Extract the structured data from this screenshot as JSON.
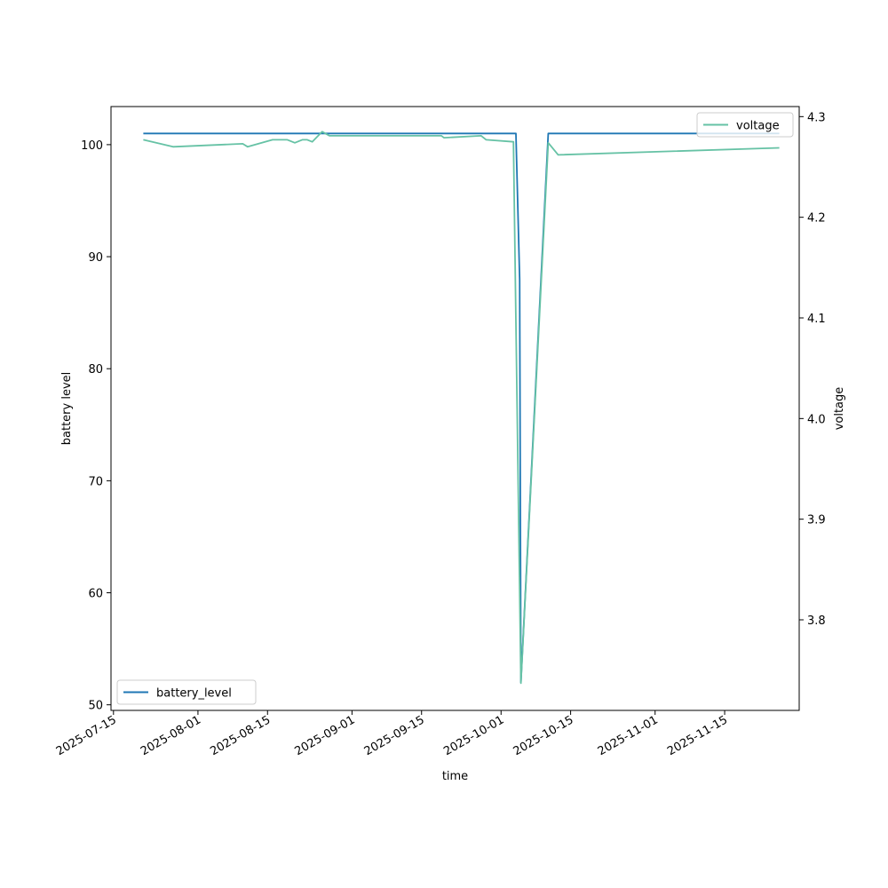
{
  "chart_data": {
    "type": "line",
    "xlabel": "time",
    "ylabel": "battery level",
    "ylabel_right": "voltage",
    "x_type": "date",
    "xlim": [
      "2025-07-14T12:00",
      "2025-11-30T00:00"
    ],
    "ylim": [
      49.5,
      103.4
    ],
    "ylim_right": [
      3.71,
      4.31
    ],
    "x_ticks": [
      "2025-07-15",
      "2025-08-01",
      "2025-08-15",
      "2025-09-01",
      "2025-09-15",
      "2025-10-01",
      "2025-10-15",
      "2025-11-01",
      "2025-11-15"
    ],
    "y_ticks": [
      50,
      60,
      70,
      80,
      90,
      100
    ],
    "y_ticks_right": [
      3.8,
      3.9,
      4.0,
      4.1,
      4.2,
      4.3
    ],
    "grid": false,
    "series": [
      {
        "name": "battery_level",
        "axis": "left",
        "color": "#1f77b4",
        "legend_position": "lower-left",
        "points": [
          [
            "2025-07-21T00:00",
            101
          ],
          [
            "2025-10-04T00:00",
            101
          ],
          [
            "2025-10-04T18:00",
            88
          ],
          [
            "2025-10-05T00:00",
            52
          ],
          [
            "2025-10-10T12:00",
            101
          ],
          [
            "2025-11-26T00:00",
            101
          ]
        ]
      },
      {
        "name": "voltage",
        "axis": "right",
        "color": "#66c2a5",
        "legend_position": "upper-right",
        "points": [
          [
            "2025-07-21T00:00",
            4.277
          ],
          [
            "2025-07-27T00:00",
            4.27
          ],
          [
            "2025-08-10T00:00",
            4.273
          ],
          [
            "2025-08-11T00:00",
            4.27
          ],
          [
            "2025-08-16T00:00",
            4.277
          ],
          [
            "2025-08-19T00:00",
            4.277
          ],
          [
            "2025-08-20T12:00",
            4.274
          ],
          [
            "2025-08-22T00:00",
            4.277
          ],
          [
            "2025-08-23T00:00",
            4.277
          ],
          [
            "2025-08-24T00:00",
            4.275
          ],
          [
            "2025-08-26T00:00",
            4.285
          ],
          [
            "2025-08-27T12:00",
            4.281
          ],
          [
            "2025-09-19T00:00",
            4.281
          ],
          [
            "2025-09-19T12:00",
            4.279
          ],
          [
            "2025-09-27T00:00",
            4.281
          ],
          [
            "2025-09-28T00:00",
            4.277
          ],
          [
            "2025-10-03T12:00",
            4.275
          ],
          [
            "2025-10-05T00:00",
            3.737
          ],
          [
            "2025-10-10T12:00",
            4.274
          ],
          [
            "2025-10-12T12:00",
            4.262
          ],
          [
            "2025-11-26T00:00",
            4.269
          ]
        ]
      }
    ]
  }
}
